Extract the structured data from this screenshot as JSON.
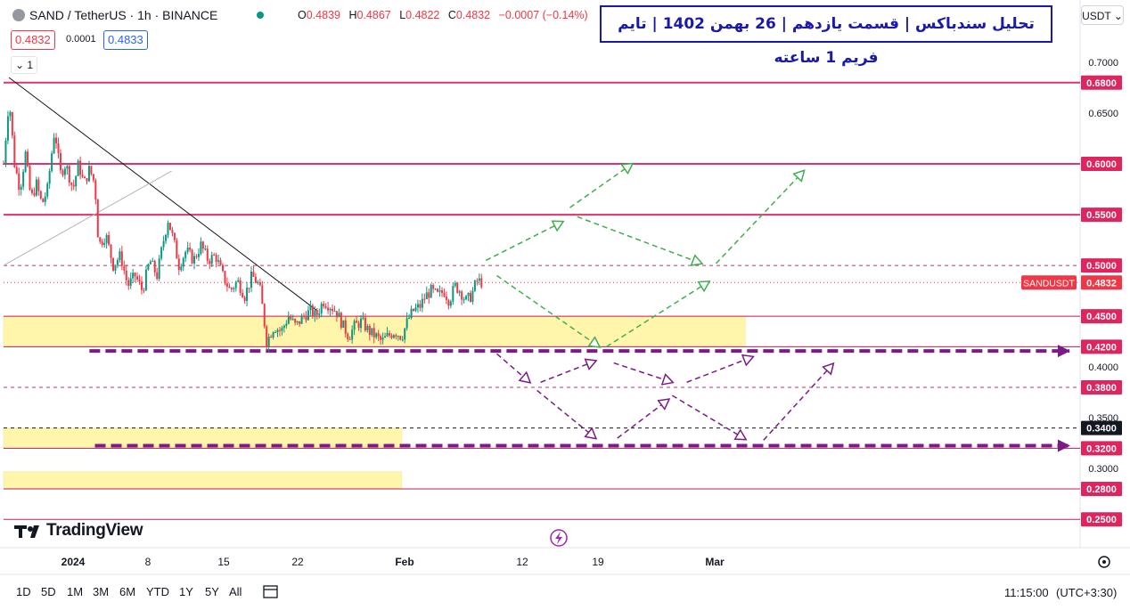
{
  "header": {
    "symbol": "SAND / TetherUS · 1h · BINANCE",
    "ohlc": {
      "o_label": "O",
      "o": "0.4839",
      "h_label": "H",
      "h": "0.4867",
      "l_label": "L",
      "l": "0.4822",
      "c_label": "C",
      "c": "0.4832",
      "change": "−0.0007 (−0.14%)"
    },
    "sell_price": "0.4832",
    "spread": "0.0001",
    "buy_price": "0.4833",
    "indicator_count": "1",
    "currency": "USDT",
    "colors": {
      "up": "#089981",
      "down": "#f23645",
      "accent": "#2962ff"
    }
  },
  "annotation_title": "تحلیل سندباکس | قسمت یازدهم | 26 بهمن 1402 | تایم فریم 1 ساعته",
  "branding": "TradingView",
  "bottom_toolbar": {
    "ranges": [
      "1D",
      "5D",
      "1M",
      "3M",
      "6M",
      "YTD",
      "1Y",
      "5Y",
      "All"
    ],
    "time": "11:15:00",
    "timezone": "(UTC+3:30)"
  },
  "chart_data": {
    "type": "candlestick",
    "symbol": "SANDUSDT",
    "timeframe": "1h",
    "ylim": [
      0.2364,
      0.7158
    ],
    "y_ticks": [
      "0.7000",
      "0.6500",
      "0.6000",
      "0.5500",
      "0.5000",
      "0.4500",
      "0.4000",
      "0.3500",
      "0.3000",
      "0.2500"
    ],
    "x_ticks": [
      "2024",
      "8",
      "15",
      "22",
      "Feb",
      "12",
      "19",
      "Mar"
    ],
    "last_price": 0.4832,
    "last_price_label": "SANDUSDT",
    "price_path": [
      [
        0.0,
        0.6
      ],
      [
        0.15,
        0.665
      ],
      [
        0.3,
        0.6
      ],
      [
        0.45,
        0.575
      ],
      [
        0.6,
        0.61
      ],
      [
        0.75,
        0.565
      ],
      [
        0.9,
        0.58
      ],
      [
        1.05,
        0.56
      ],
      [
        1.2,
        0.575
      ],
      [
        1.4,
        0.635
      ],
      [
        1.55,
        0.59
      ],
      [
        1.7,
        0.6
      ],
      [
        1.9,
        0.575
      ],
      [
        2.05,
        0.6
      ],
      [
        2.2,
        0.58
      ],
      [
        2.35,
        0.595
      ],
      [
        2.5,
        0.58
      ],
      [
        2.6,
        0.52
      ],
      [
        2.8,
        0.53
      ],
      [
        3.0,
        0.5
      ],
      [
        3.2,
        0.51
      ],
      [
        3.4,
        0.48
      ],
      [
        3.6,
        0.49
      ],
      [
        3.8,
        0.475
      ],
      [
        4.0,
        0.505
      ],
      [
        4.2,
        0.49
      ],
      [
        4.35,
        0.52
      ],
      [
        4.5,
        0.545
      ],
      [
        4.65,
        0.525
      ],
      [
        4.8,
        0.5
      ],
      [
        5.0,
        0.515
      ],
      [
        5.2,
        0.505
      ],
      [
        5.4,
        0.52
      ],
      [
        5.6,
        0.505
      ],
      [
        5.8,
        0.51
      ],
      [
        6.0,
        0.49
      ],
      [
        6.2,
        0.475
      ],
      [
        6.4,
        0.485
      ],
      [
        6.6,
        0.47
      ],
      [
        6.8,
        0.49
      ],
      [
        7.0,
        0.48
      ],
      [
        7.1,
        0.455
      ],
      [
        7.2,
        0.425
      ],
      [
        7.4,
        0.44
      ],
      [
        7.6,
        0.435
      ],
      [
        7.8,
        0.45
      ],
      [
        8.0,
        0.44
      ],
      [
        8.2,
        0.45
      ],
      [
        8.4,
        0.455
      ],
      [
        8.55,
        0.45
      ],
      [
        8.75,
        0.465
      ],
      [
        8.95,
        0.46
      ],
      [
        9.1,
        0.455
      ],
      [
        9.3,
        0.44
      ],
      [
        9.45,
        0.43
      ],
      [
        9.6,
        0.44
      ],
      [
        9.8,
        0.445
      ],
      [
        10.0,
        0.435
      ],
      [
        10.2,
        0.43
      ],
      [
        10.35,
        0.425
      ],
      [
        10.5,
        0.43
      ],
      [
        10.7,
        0.435
      ],
      [
        10.9,
        0.43
      ],
      [
        11.05,
        0.445
      ],
      [
        11.2,
        0.455
      ],
      [
        11.4,
        0.46
      ],
      [
        11.55,
        0.47
      ],
      [
        11.7,
        0.475
      ],
      [
        11.9,
        0.47
      ],
      [
        12.05,
        0.475
      ],
      [
        12.2,
        0.465
      ],
      [
        12.35,
        0.48
      ],
      [
        12.5,
        0.475
      ],
      [
        12.65,
        0.465
      ],
      [
        12.8,
        0.47
      ],
      [
        12.95,
        0.485
      ],
      [
        13.1,
        0.4832
      ]
    ],
    "resistance_levels": [
      0.68,
      0.6,
      0.55
    ],
    "dashed_levels": [
      0.5,
      0.38,
      0.34
    ],
    "support_levels": [
      0.45,
      0.42,
      0.32,
      0.28,
      0.25
    ],
    "level_labels": [
      "0.6800",
      "0.6000",
      "0.5500",
      "0.5000",
      "0.4832",
      "0.4500",
      "0.4200",
      "0.3800",
      "0.3400",
      "0.3200",
      "0.2800",
      "0.2500"
    ],
    "zones": [
      {
        "from_day": 0,
        "to_day": 20.3,
        "y_low": 0.42,
        "y_high": 0.45
      },
      {
        "from_day": 0,
        "to_day": 10.9,
        "y_low": 0.32,
        "y_high": 0.34
      },
      {
        "from_day": 0,
        "to_day": 10.9,
        "y_low": 0.28,
        "y_high": 0.297
      }
    ],
    "trendlines": [
      {
        "from": [
          0.15,
          0.685
        ],
        "to": [
          8.6,
          0.455
        ],
        "color": "#131722"
      },
      {
        "from": [
          0.0,
          0.5
        ],
        "to": [
          4.6,
          0.593
        ],
        "color": "#b2b5be"
      }
    ],
    "scenario_bullish": [
      [
        [
          13.2,
          0.505
        ],
        [
          15.3,
          0.543
        ]
      ],
      [
        [
          15.5,
          0.557
        ],
        [
          17.2,
          0.6
        ]
      ],
      [
        [
          15.7,
          0.548
        ],
        [
          19.1,
          0.502
        ]
      ],
      [
        [
          19.5,
          0.502
        ],
        [
          21.9,
          0.593
        ]
      ],
      [
        [
          13.5,
          0.49
        ],
        [
          16.3,
          0.42
        ]
      ],
      [
        [
          16.5,
          0.42
        ],
        [
          19.3,
          0.484
        ]
      ]
    ],
    "scenario_bearish": [
      [
        [
          13.5,
          0.413
        ],
        [
          14.4,
          0.385
        ]
      ],
      [
        [
          14.7,
          0.385
        ],
        [
          16.2,
          0.406
        ]
      ],
      [
        [
          16.7,
          0.404
        ],
        [
          18.3,
          0.385
        ]
      ],
      [
        [
          18.7,
          0.385
        ],
        [
          20.5,
          0.41
        ]
      ],
      [
        [
          14.6,
          0.377
        ],
        [
          16.2,
          0.33
        ]
      ],
      [
        [
          16.8,
          0.33
        ],
        [
          18.2,
          0.368
        ]
      ],
      [
        [
          18.3,
          0.372
        ],
        [
          20.3,
          0.329
        ]
      ],
      [
        [
          20.8,
          0.328
        ],
        [
          22.7,
          0.403
        ]
      ]
    ],
    "purple_dashed_levels": [
      {
        "y": 0.4158,
        "from_day": 2.35
      },
      {
        "y": 0.3225,
        "from_day": 2.5
      }
    ]
  }
}
